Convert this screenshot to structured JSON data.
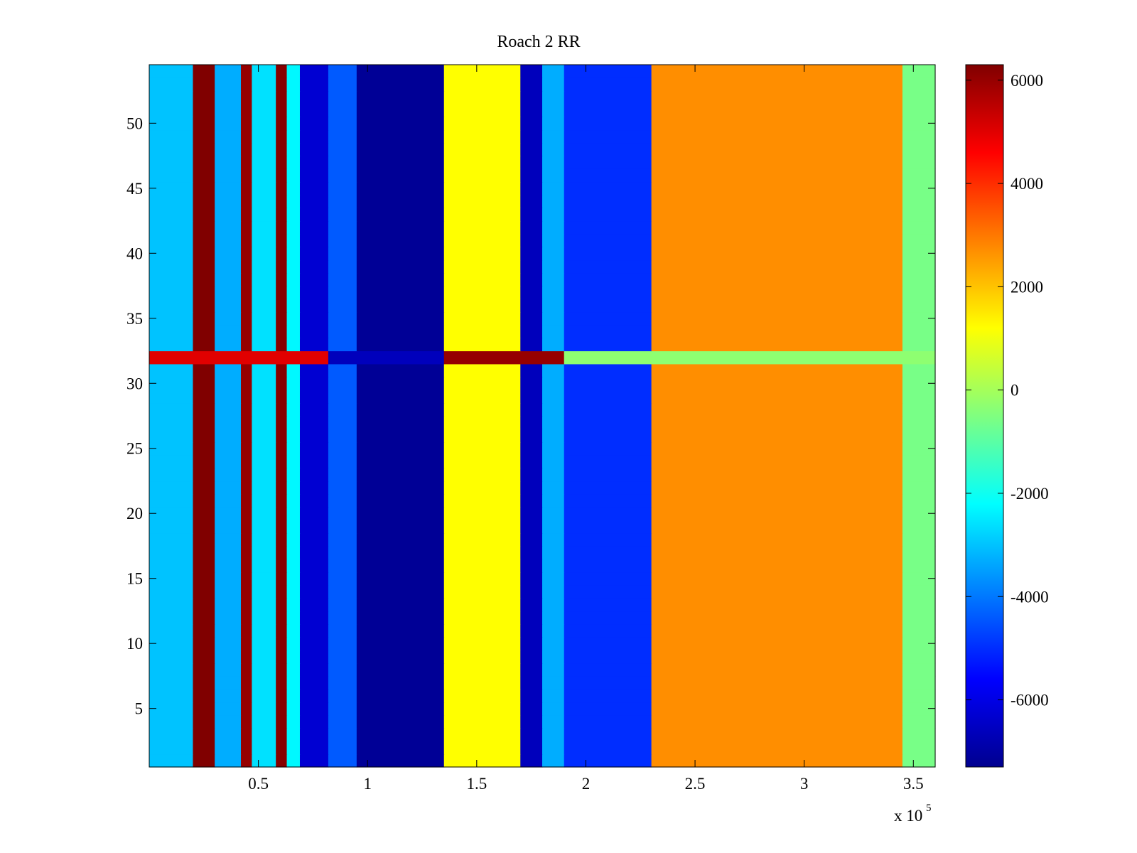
{
  "chart_data": {
    "type": "heatmap",
    "title": "Roach 2 RR",
    "xlabel": "",
    "ylabel": "",
    "x_multiplier_label": "x 10",
    "x_multiplier_exponent": "5",
    "xlim": [
      0,
      3.6
    ],
    "ylim": [
      0.5,
      54.5
    ],
    "x_ticks": [
      0.5,
      1,
      1.5,
      2,
      2.5,
      3,
      3.5
    ],
    "x_tick_labels": [
      "0.5",
      "1",
      "1.5",
      "2",
      "2.5",
      "3",
      "3.5"
    ],
    "y_ticks": [
      5,
      10,
      15,
      20,
      25,
      30,
      35,
      40,
      45,
      50
    ],
    "y_tick_labels": [
      "5",
      "10",
      "15",
      "20",
      "25",
      "30",
      "35",
      "40",
      "45",
      "50"
    ],
    "colormap": "jet",
    "colorbar": {
      "clim": [
        -7300,
        6300
      ],
      "ticks": [
        -6000,
        -4000,
        -2000,
        0,
        2000,
        4000,
        6000
      ],
      "tick_labels": [
        "-6000",
        "-4000",
        "-2000",
        "0",
        "2000",
        "4000",
        "6000"
      ]
    },
    "rows": 54,
    "column_segments_x1e5": [
      {
        "x": [
          0.0,
          0.2
        ],
        "value": -3000
      },
      {
        "x": [
          0.2,
          0.3
        ],
        "value": 6300
      },
      {
        "x": [
          0.3,
          0.42
        ],
        "value": -3300
      },
      {
        "x": [
          0.42,
          0.47
        ],
        "value": 6000
      },
      {
        "x": [
          0.47,
          0.58
        ],
        "value": -2600
      },
      {
        "x": [
          0.58,
          0.63
        ],
        "value": 6200
      },
      {
        "x": [
          0.63,
          0.69
        ],
        "value": -2300
      },
      {
        "x": [
          0.69,
          0.82
        ],
        "value": -6200
      },
      {
        "x": [
          0.82,
          0.95
        ],
        "value": -4400
      },
      {
        "x": [
          0.95,
          1.35
        ],
        "value": -7000
      },
      {
        "x": [
          1.35,
          1.7
        ],
        "value": 1200
      },
      {
        "x": [
          1.7,
          1.8
        ],
        "value": -6500
      },
      {
        "x": [
          1.8,
          1.9
        ],
        "value": -3300
      },
      {
        "x": [
          1.9,
          2.3
        ],
        "value": -5000
      },
      {
        "x": [
          2.3,
          3.45
        ],
        "value": 2700
      },
      {
        "x": [
          3.45,
          3.6
        ],
        "value": -600
      }
    ],
    "row_32_segments_x1e5": [
      {
        "x": [
          0.0,
          0.82
        ],
        "value": 5000
      },
      {
        "x": [
          0.82,
          1.35
        ],
        "value": -6500
      },
      {
        "x": [
          1.35,
          1.9
        ],
        "value": 6000
      },
      {
        "x": [
          1.9,
          3.6
        ],
        "value": -300
      }
    ]
  }
}
